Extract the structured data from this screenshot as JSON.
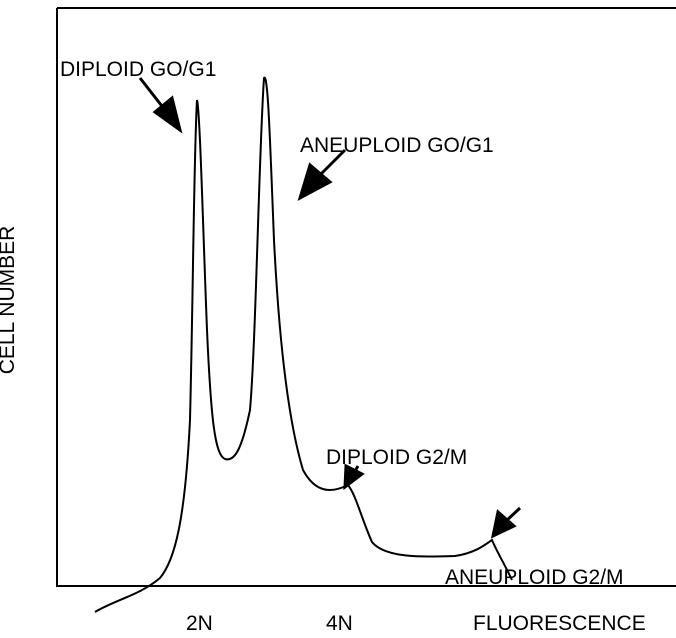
{
  "axes": {
    "y_label": "CELL NUMBER",
    "x_label": "FLUORESCENCE",
    "x_marks": [
      "2N",
      "4N"
    ]
  },
  "annotations": [
    "DIPLOID GO/G1",
    "ANEUPLOID GO/G1",
    "DIPLOID G2/M",
    "ANEUPLOID G2/M"
  ]
}
